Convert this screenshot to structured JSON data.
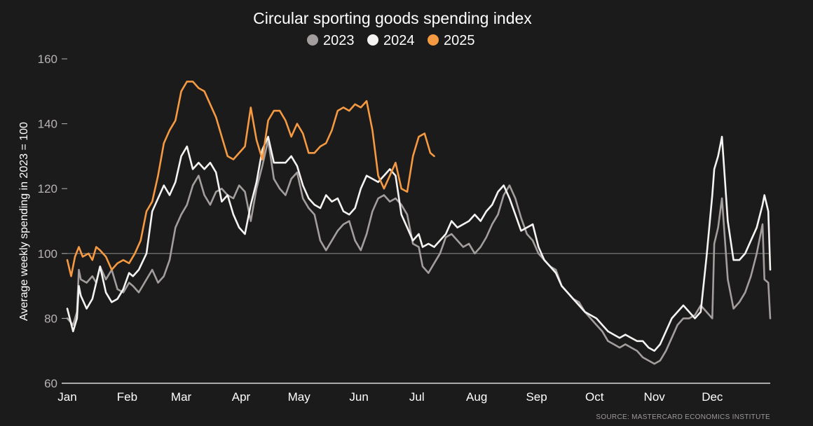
{
  "colors": {
    "background": "#1c1b1b",
    "text": "#ffffff",
    "muted_text": "#b7b3b3",
    "series_2023": "#a39d9d",
    "series_2024": "#f5f4f2",
    "series_2025": "#f59a42",
    "baseline": "#bdbdbd"
  },
  "source": "SOURCE: MASTERCARD ECONOMICS INSTITUTE",
  "chart_data": {
    "type": "line",
    "title": "Circular sporting goods spending index",
    "ylabel": "Average weekly spending in 2023 = 100",
    "xlabel": "",
    "ylim": [
      60,
      160
    ],
    "yticks": [
      60,
      80,
      100,
      120,
      140,
      160
    ],
    "reference_line": 100,
    "grid": false,
    "legend_position": "top-center",
    "x_unit": "day of year",
    "xlim": [
      1,
      365
    ],
    "months": [
      "Jan",
      "Feb",
      "Mar",
      "Apr",
      "May",
      "Jun",
      "Jul",
      "Aug",
      "Sep",
      "Oct",
      "Nov",
      "Dec"
    ],
    "series": [
      {
        "name": "2023",
        "color": "#a39d9d",
        "x": [
          1,
          4,
          6,
          7,
          8,
          11,
          14,
          16,
          18,
          21,
          24,
          27,
          30,
          33,
          35,
          38,
          42,
          45,
          48,
          51,
          54,
          57,
          60,
          63,
          66,
          69,
          72,
          75,
          78,
          81,
          84,
          87,
          90,
          93,
          96,
          99,
          102,
          105,
          108,
          111,
          114,
          117,
          120,
          123,
          126,
          129,
          132,
          135,
          138,
          141,
          144,
          147,
          150,
          153,
          156,
          159,
          162,
          165,
          168,
          171,
          174,
          177,
          180,
          183,
          185,
          188,
          191,
          194,
          197,
          200,
          203,
          206,
          209,
          212,
          215,
          218,
          221,
          224,
          227,
          230,
          233,
          236,
          239,
          242,
          245,
          248,
          251,
          254,
          257,
          260,
          263,
          266,
          269,
          272,
          275,
          278,
          281,
          284,
          287,
          290,
          293,
          296,
          299,
          302,
          305,
          308,
          311,
          314,
          317,
          320,
          323,
          326,
          329,
          332,
          335,
          336,
          338,
          340,
          343,
          346,
          349,
          352,
          355,
          358,
          361,
          362,
          364,
          365
        ],
        "y": [
          80,
          78,
          82,
          95,
          92,
          91,
          93,
          91,
          96,
          92,
          95,
          89,
          88,
          91,
          90,
          88,
          92,
          95,
          91,
          93,
          98,
          108,
          112,
          115,
          121,
          124,
          118,
          115,
          119,
          120,
          118,
          117,
          121,
          119,
          110,
          120,
          127,
          135,
          123,
          120,
          118,
          123,
          125,
          117,
          114,
          112,
          104,
          101,
          104,
          107,
          109,
          110,
          104,
          101,
          106,
          113,
          117,
          118,
          116,
          117,
          115,
          112,
          103,
          102,
          96,
          94,
          97,
          100,
          105,
          106,
          104,
          102,
          103,
          100,
          102,
          105,
          109,
          112,
          118,
          121,
          117,
          111,
          106,
          104,
          100,
          98,
          96,
          95,
          90,
          88,
          86,
          85,
          82,
          80,
          78,
          76,
          73,
          72,
          71,
          72,
          71,
          70,
          68,
          67,
          66,
          67,
          70,
          74,
          78,
          80,
          80,
          81,
          84,
          82,
          80,
          103,
          108,
          117,
          92,
          83,
          85,
          88,
          93,
          100,
          109,
          92,
          91,
          80
        ]
      },
      {
        "name": "2024",
        "color": "#f5f4f2",
        "x": [
          1,
          4,
          6,
          7,
          8,
          11,
          14,
          16,
          18,
          21,
          24,
          27,
          30,
          33,
          35,
          38,
          42,
          45,
          48,
          51,
          54,
          57,
          60,
          63,
          66,
          69,
          72,
          75,
          78,
          81,
          84,
          87,
          90,
          93,
          96,
          99,
          102,
          105,
          108,
          111,
          114,
          117,
          120,
          123,
          126,
          129,
          132,
          135,
          138,
          141,
          144,
          147,
          150,
          153,
          156,
          159,
          162,
          165,
          168,
          171,
          174,
          177,
          180,
          183,
          185,
          188,
          191,
          194,
          197,
          200,
          203,
          206,
          209,
          212,
          215,
          218,
          221,
          224,
          227,
          230,
          233,
          236,
          239,
          242,
          245,
          248,
          251,
          254,
          257,
          260,
          263,
          266,
          269,
          272,
          275,
          278,
          281,
          284,
          287,
          290,
          293,
          296,
          299,
          302,
          305,
          308,
          311,
          314,
          317,
          320,
          323,
          326,
          329,
          332,
          335,
          336,
          338,
          340,
          343,
          346,
          349,
          352,
          355,
          358,
          361,
          362,
          364,
          365
        ],
        "y": [
          83,
          76,
          80,
          90,
          87,
          83,
          86,
          91,
          96,
          88,
          85,
          86,
          89,
          94,
          93,
          95,
          100,
          113,
          117,
          121,
          118,
          122,
          130,
          133,
          126,
          128,
          126,
          128,
          125,
          116,
          118,
          112,
          108,
          106,
          115,
          122,
          132,
          136,
          128,
          128,
          128,
          130,
          127,
          121,
          117,
          115,
          114,
          118,
          116,
          117,
          113,
          112,
          114,
          120,
          124,
          123,
          122,
          124,
          126,
          124,
          112,
          108,
          104,
          106,
          102,
          103,
          102,
          104,
          106,
          110,
          108,
          109,
          110,
          112,
          110,
          113,
          115,
          119,
          121,
          117,
          112,
          107,
          108,
          109,
          102,
          98,
          96,
          94,
          90,
          88,
          86,
          84,
          82,
          81,
          80,
          78,
          76,
          75,
          74,
          75,
          74,
          73,
          73,
          71,
          70,
          72,
          76,
          80,
          82,
          84,
          82,
          80,
          82,
          99,
          118,
          126,
          130,
          136,
          110,
          98,
          98,
          100,
          104,
          108,
          115,
          118,
          113,
          95
        ]
      },
      {
        "name": "2025",
        "color": "#f59a42",
        "x": [
          1,
          3,
          5,
          7,
          9,
          12,
          14,
          16,
          18,
          21,
          24,
          27,
          30,
          33,
          36,
          39,
          42,
          45,
          48,
          51,
          54,
          57,
          60,
          63,
          66,
          69,
          72,
          75,
          78,
          81,
          84,
          87,
          90,
          93,
          96,
          99,
          102,
          105,
          108,
          111,
          114,
          117,
          120,
          123,
          126,
          129,
          132,
          135,
          138,
          141,
          144,
          147,
          150,
          153,
          156,
          159,
          162,
          165,
          168,
          171,
          174,
          177,
          180,
          183,
          186,
          189,
          191
        ],
        "y": [
          98,
          93,
          99,
          102,
          99,
          100,
          98,
          102,
          101,
          99,
          95,
          97,
          98,
          97,
          100,
          104,
          113,
          116,
          124,
          134,
          138,
          141,
          150,
          153,
          153,
          151,
          150,
          146,
          142,
          136,
          130,
          129,
          131,
          133,
          145,
          135,
          129,
          141,
          144,
          144,
          141,
          136,
          140,
          137,
          131,
          131,
          133,
          134,
          138,
          144,
          145,
          144,
          146,
          145,
          147,
          138,
          124,
          120,
          124,
          128,
          120,
          119,
          130,
          136,
          137,
          131,
          130
        ]
      }
    ]
  }
}
